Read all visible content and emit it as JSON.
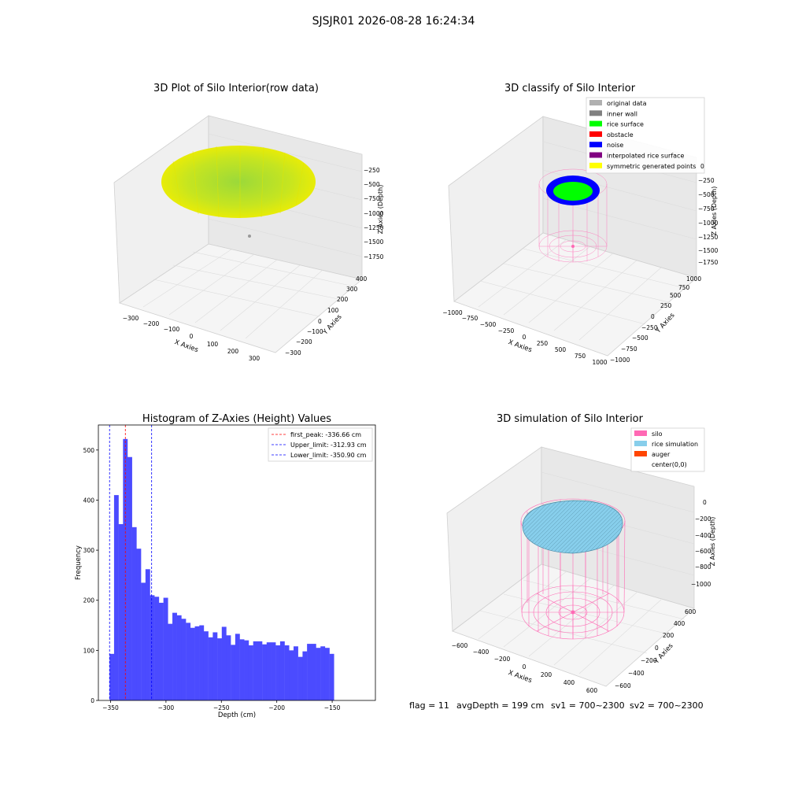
{
  "suptitle": "SJSJR01 2026-08-28 16:24:34",
  "footer": {
    "flag": "flag = 11",
    "avg": "avgDepth = 199 cm",
    "sv1": "sv1 = 700~2300",
    "sv2": "sv2 = 700~2300"
  },
  "chart_data": [
    {
      "type": "scatter3d",
      "title": "3D Plot of Silo Interior(row data)",
      "xlabel": "X Axies",
      "ylabel": "Y Axies",
      "zlabel": "Z Axies (Depth)",
      "x_ticks": [
        "−300",
        "−200",
        "−100",
        "0",
        "100",
        "200",
        "300"
      ],
      "y_ticks": [
        "−300",
        "−200",
        "−100",
        "0",
        "100",
        "200",
        "300",
        "400"
      ],
      "z_ticks": [
        "−250",
        "−500",
        "−750",
        "−1000",
        "−1250",
        "−1500",
        "−1750"
      ],
      "colors": {
        "surface_center": "#9bd93a",
        "surface_edge": "#f2ee00",
        "outlier": "#9a9a9a"
      }
    },
    {
      "type": "scatter3d",
      "title": "3D classify of Silo Interior",
      "xlabel": "X Axies",
      "ylabel": "Y Axies",
      "zlabel": "Z Axies (Depth)",
      "x_ticks": [
        "−1000",
        "−750",
        "−500",
        "−250",
        "0",
        "250",
        "500",
        "750",
        "1000"
      ],
      "y_ticks": [
        "−1000",
        "−750",
        "−500",
        "−250",
        "0",
        "250",
        "500",
        "750",
        "1000"
      ],
      "z_ticks": [
        "0",
        "−250",
        "−500",
        "−750",
        "−1000",
        "−1250",
        "−1500",
        "−1750"
      ],
      "legend": [
        {
          "label": "original data",
          "color": "#b0b0b0"
        },
        {
          "label": "inner wall",
          "color": "#808080"
        },
        {
          "label": "rice surface",
          "color": "#00ff00"
        },
        {
          "label": "obstacle",
          "color": "#ff0000"
        },
        {
          "label": "noise",
          "color": "#0000ff"
        },
        {
          "label": "interpolated rice surface",
          "color": "#800080"
        },
        {
          "label": "symmetric generated points",
          "color": "#ffff00"
        }
      ],
      "legend_loc": "upper right",
      "wall_color": "#ff69b4"
    },
    {
      "type": "bar",
      "title": "Histogram of Z-Axies (Height) Values",
      "xlabel": "Depth (cm)",
      "ylabel": "Frequency",
      "xlim": [
        -361,
        -111
      ],
      "ylim": [
        0,
        550
      ],
      "x_ticks": [
        -350,
        -300,
        -250,
        -200,
        -150
      ],
      "y_ticks": [
        0,
        100,
        200,
        300,
        400,
        500
      ],
      "bin_start": -350.9,
      "bin_width": 4.05,
      "values": [
        93,
        410,
        352,
        522,
        486,
        346,
        303,
        235,
        262,
        210,
        207,
        195,
        205,
        153,
        175,
        170,
        163,
        155,
        145,
        148,
        150,
        138,
        126,
        136,
        124,
        147,
        130,
        111,
        133,
        122,
        120,
        110,
        118,
        118,
        112,
        116,
        116,
        110,
        118,
        110,
        100,
        108,
        87,
        98,
        113,
        113,
        105,
        108,
        105,
        93
      ],
      "bar_color": "#4b4bff",
      "lines": [
        {
          "value": -336.66,
          "label": "first_peak: -336.66 cm",
          "color": "#ff0000"
        },
        {
          "value": -312.93,
          "label": "Upper_limit: -312.93 cm",
          "color": "#0000ff"
        },
        {
          "value": -350.9,
          "label": "Lower_limit: -350.90 cm",
          "color": "#0000ff"
        }
      ],
      "legend_loc": "upper right"
    },
    {
      "type": "surface3d",
      "title": "3D simulation of Silo Interior",
      "xlabel": "X Axies",
      "ylabel": "Y Axies",
      "zlabel": "Z Axies (Depth)",
      "x_ticks": [
        "−600",
        "−400",
        "−200",
        "0",
        "200",
        "400",
        "600"
      ],
      "y_ticks": [
        "−600",
        "−400",
        "−200",
        "0",
        "200",
        "400",
        "600"
      ],
      "z_ticks": [
        "0",
        "−200",
        "−400",
        "−600",
        "−800",
        "−1000"
      ],
      "legend": [
        {
          "label": "silo",
          "color": "#ff69b4"
        },
        {
          "label": "rice simulation",
          "color": "#87ceeb"
        },
        {
          "label": "auger",
          "color": "#ff4500"
        },
        {
          "label": "center(0,0)",
          "color": "#ffffff"
        }
      ],
      "legend_loc": "upper right"
    }
  ]
}
